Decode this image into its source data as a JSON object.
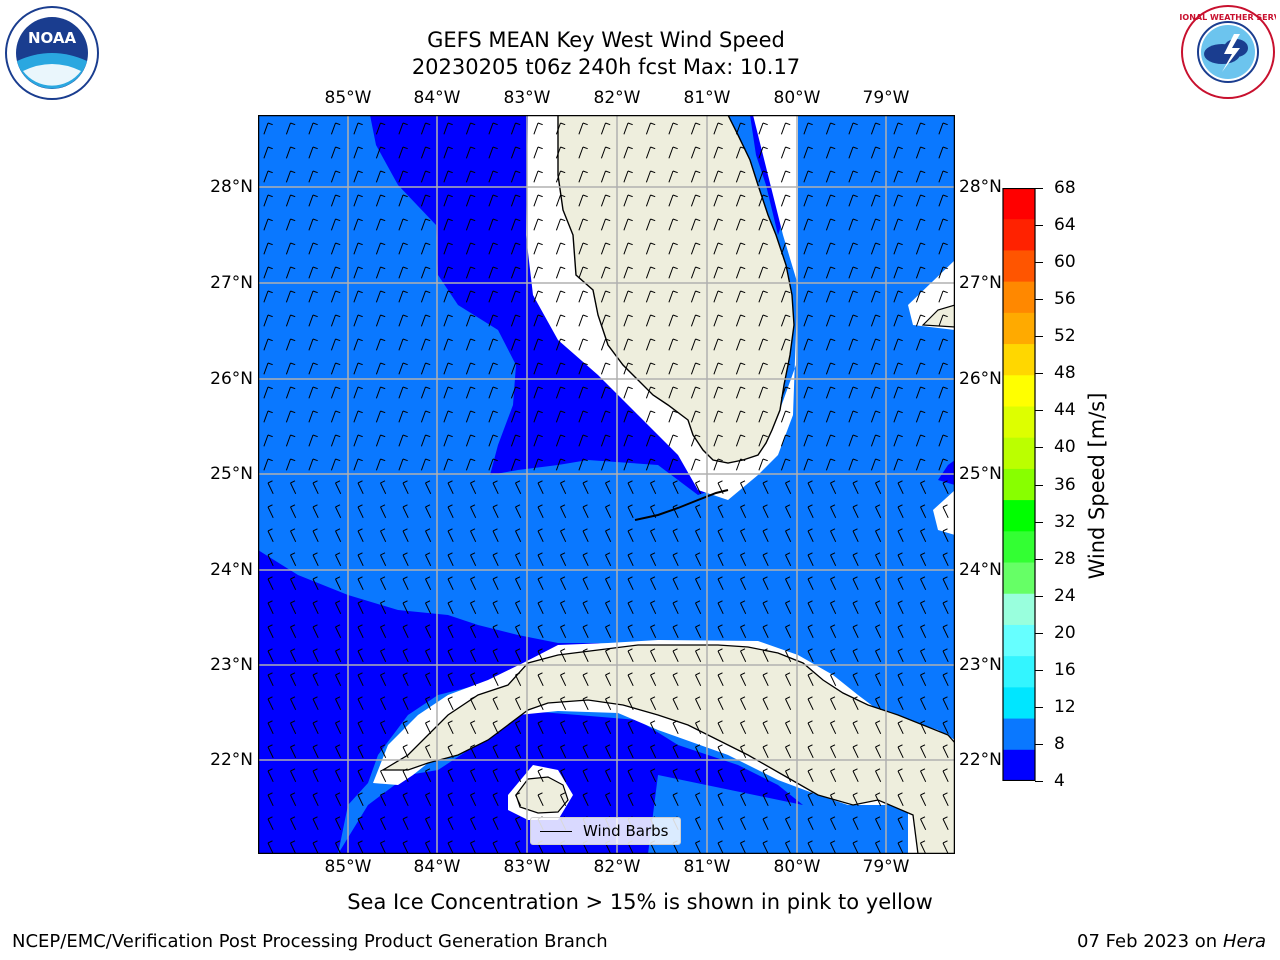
{
  "title_line1": "GEFS MEAN Key West Wind Speed",
  "title_line2": "20230205 t06z 240h fcst   Max: 10.17",
  "lon_labels": [
    "85°W",
    "84°W",
    "83°W",
    "82°W",
    "81°W",
    "80°W",
    "79°W"
  ],
  "lat_labels": [
    "28°N",
    "27°N",
    "26°N",
    "25°N",
    "24°N",
    "23°N",
    "22°N"
  ],
  "colorbar": {
    "label": "Wind Speed [m/s]",
    "ticks": [
      "4",
      "8",
      "12",
      "16",
      "20",
      "24",
      "28",
      "32",
      "36",
      "40",
      "44",
      "48",
      "52",
      "56",
      "60",
      "64",
      "68"
    ],
    "colors": [
      "#0000ff",
      "#0a78ff",
      "#00e6ff",
      "#33f5ff",
      "#66ffff",
      "#99ffdd",
      "#66ff66",
      "#33ff33",
      "#00ff00",
      "#88ff00",
      "#bbff00",
      "#ddff00",
      "#ffff00",
      "#ffd700",
      "#ffaa00",
      "#ff8800",
      "#ff5500",
      "#ff2200",
      "#ff0000"
    ]
  },
  "legend": {
    "label": "Wind Barbs"
  },
  "note": "Sea Ice Concentration > 15% is shown in pink to yellow",
  "footer_left": "NCEP/EMC/Verification Post Processing Product Generation Branch",
  "footer_right_date": "07 Feb 2023 on",
  "footer_right_host": "Hera",
  "logos": {
    "left": "NOAA",
    "right_ring": "NATIONAL WEATHER SERVICE"
  },
  "colors": {
    "ocean_high": "#0a78ff",
    "ocean_low": "#0000ff",
    "land": "#eeeedd",
    "grid": "#b0b0b0"
  }
}
